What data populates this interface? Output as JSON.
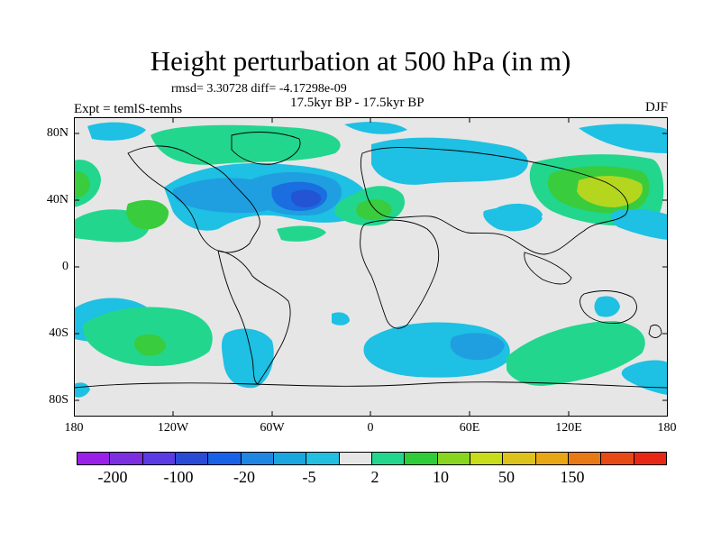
{
  "title": "Height perturbation at 500 hPa (in m)",
  "stats": "rmsd= 3.30728 diff= -4.17298e-09",
  "experiment": "Expt = temlS-temhs",
  "period": "17.5kyr BP - 17.5kyr BP",
  "season": "DJF",
  "lat_labels": [
    "80N",
    "40N",
    "0",
    "40S",
    "80S"
  ],
  "lon_labels": [
    "180",
    "120W",
    "60W",
    "0",
    "60E",
    "120E",
    "180"
  ],
  "colorbar": {
    "colors": [
      "#9a1fe8",
      "#7d2ee0",
      "#5b3be4",
      "#2a4bd6",
      "#1762e6",
      "#1f86e3",
      "#1aa6de",
      "#22c0e0",
      "#e6e6e6",
      "#22d68e",
      "#2fcc3a",
      "#88d41f",
      "#c8dc1a",
      "#dcc21a",
      "#e8a615",
      "#e77a15",
      "#e84a16",
      "#e82814"
    ],
    "labels": [
      "-200",
      "-100",
      "-20",
      "-5",
      "2",
      "10",
      "50",
      "150"
    ]
  },
  "legend_fill": {
    "neutral": "#e6e6e6",
    "light_blue": "#1ec0e3",
    "mid_blue": "#1f9fe0",
    "deep_blue": "#1a6ee0",
    "darkest_blue": "#2254d4",
    "green": "#22d68e",
    "bright_green": "#39cc3d",
    "yellow_green": "#b5d61f"
  }
}
